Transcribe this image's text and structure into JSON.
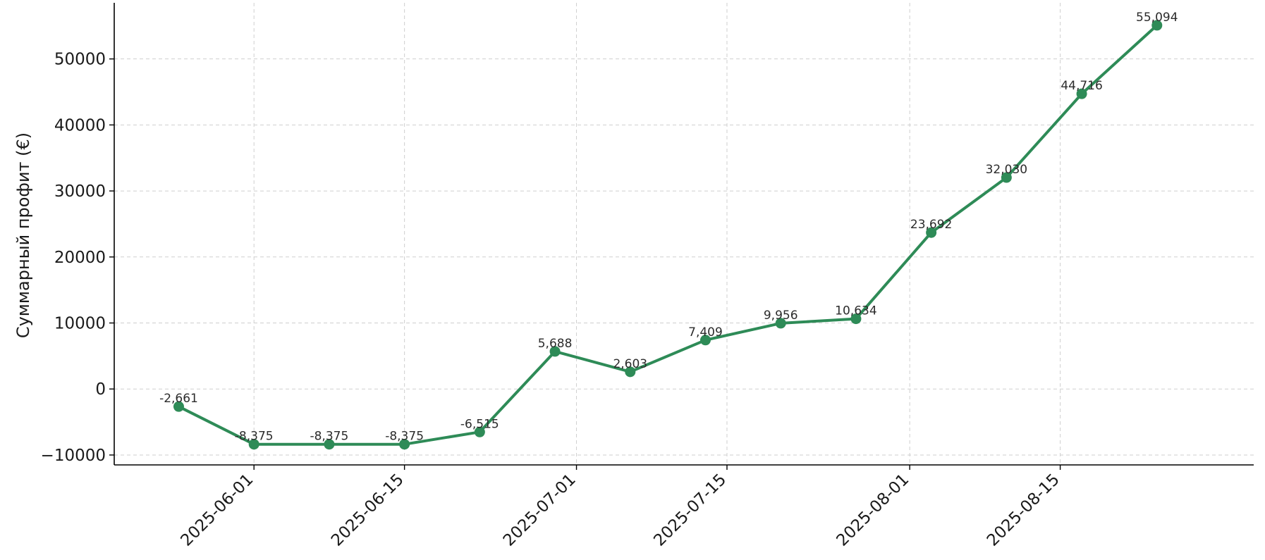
{
  "chart_data": {
    "type": "line",
    "title": "",
    "xlabel": "",
    "ylabel": "Суммарный профит (€)",
    "x": [
      "2025-05-25",
      "2025-06-01",
      "2025-06-08",
      "2025-06-15",
      "2025-06-22",
      "2025-06-29",
      "2025-07-06",
      "2025-07-13",
      "2025-07-20",
      "2025-07-27",
      "2025-08-03",
      "2025-08-10",
      "2025-08-17",
      "2025-08-24"
    ],
    "series": [
      {
        "values": [
          -2661,
          -8375,
          -8375,
          -8375,
          -6515,
          5688,
          2603,
          7409,
          9956,
          10634,
          23692,
          32030,
          44716,
          55094
        ],
        "labels": [
          "-2,661",
          "-8,375",
          "-8,375",
          "-8,375",
          "-6,515",
          "5,688",
          "2,603",
          "7,409",
          "9,956",
          "10,634",
          "23,692",
          "32,030",
          "44,716",
          "55,094"
        ]
      }
    ],
    "x_ticks": [
      "2025-06-01",
      "2025-06-15",
      "2025-07-01",
      "2025-07-15",
      "2025-08-01",
      "2025-08-15"
    ],
    "y_ticks": [
      {
        "value": -10000,
        "label": "−10000"
      },
      {
        "value": 0,
        "label": "0"
      },
      {
        "value": 10000,
        "label": "10000"
      },
      {
        "value": 20000,
        "label": "20000"
      },
      {
        "value": 30000,
        "label": "30000"
      },
      {
        "value": 40000,
        "label": "40000"
      },
      {
        "value": 50000,
        "label": "50000"
      }
    ],
    "xlim": [
      "2025-05-19",
      "2025-09-02"
    ],
    "ylim": [
      -11500,
      58500
    ],
    "grid": true,
    "color": "#2e8b57"
  }
}
